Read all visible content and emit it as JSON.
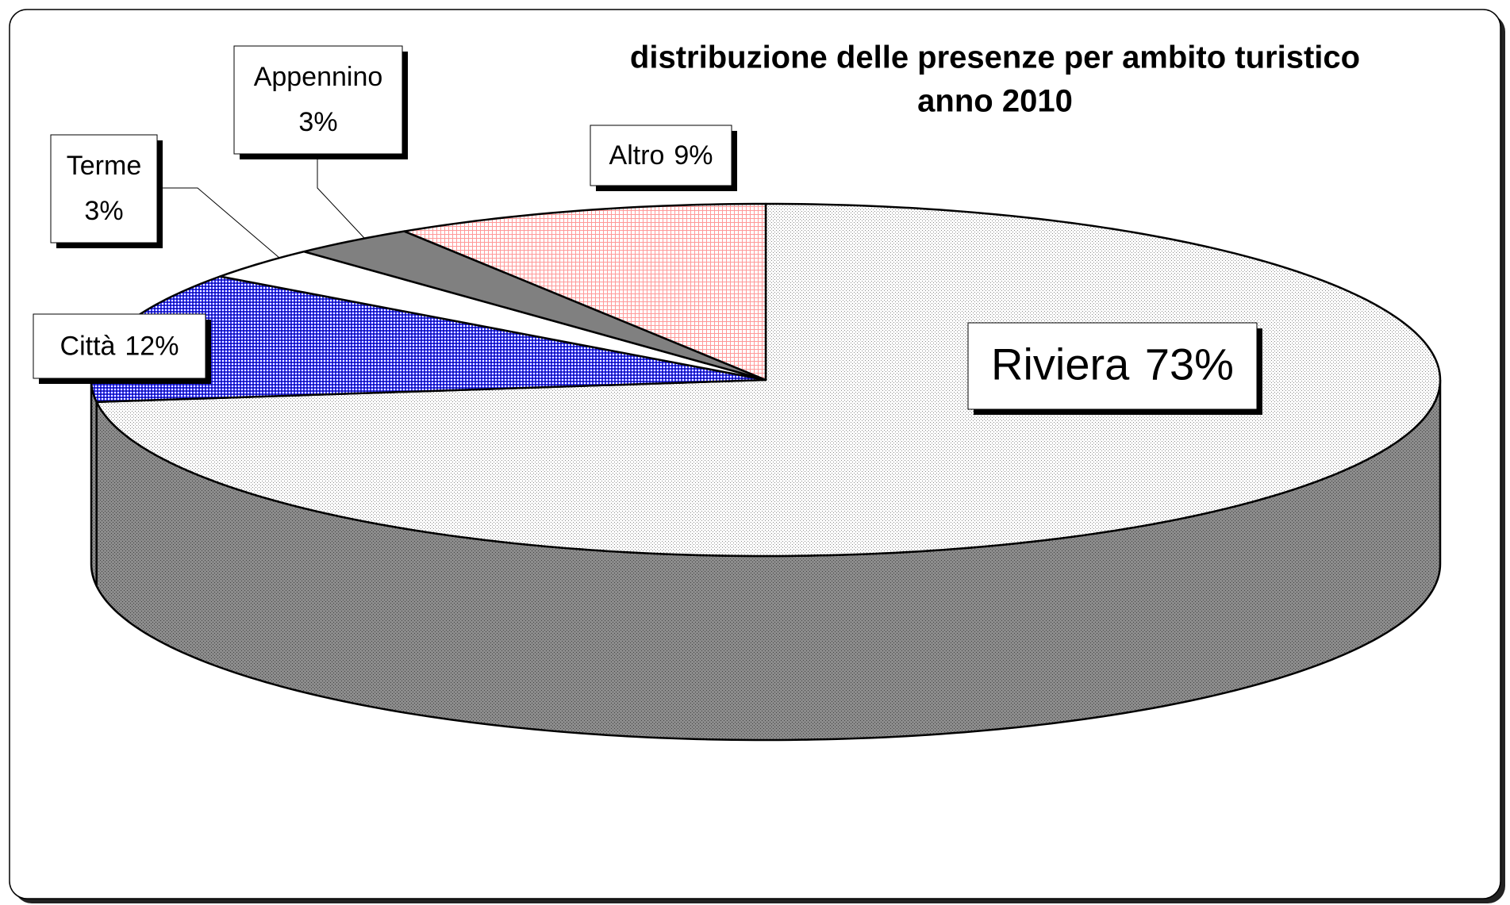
{
  "chart_data": {
    "type": "pie3d",
    "title": "distribuzione delle presenze per ambito turistico",
    "subtitle": "anno 2010",
    "categories": [
      "Riviera",
      "Città",
      "Terme",
      "Appennino",
      "Altro"
    ],
    "values": [
      73,
      12,
      3,
      3,
      9
    ],
    "value_labels": [
      "73%",
      "12%",
      "3%",
      "3%",
      "9%"
    ],
    "colors": [
      "#e6e6e6",
      "#3333ff",
      "#ffffff",
      "#808080",
      "#ffb3b3"
    ]
  }
}
